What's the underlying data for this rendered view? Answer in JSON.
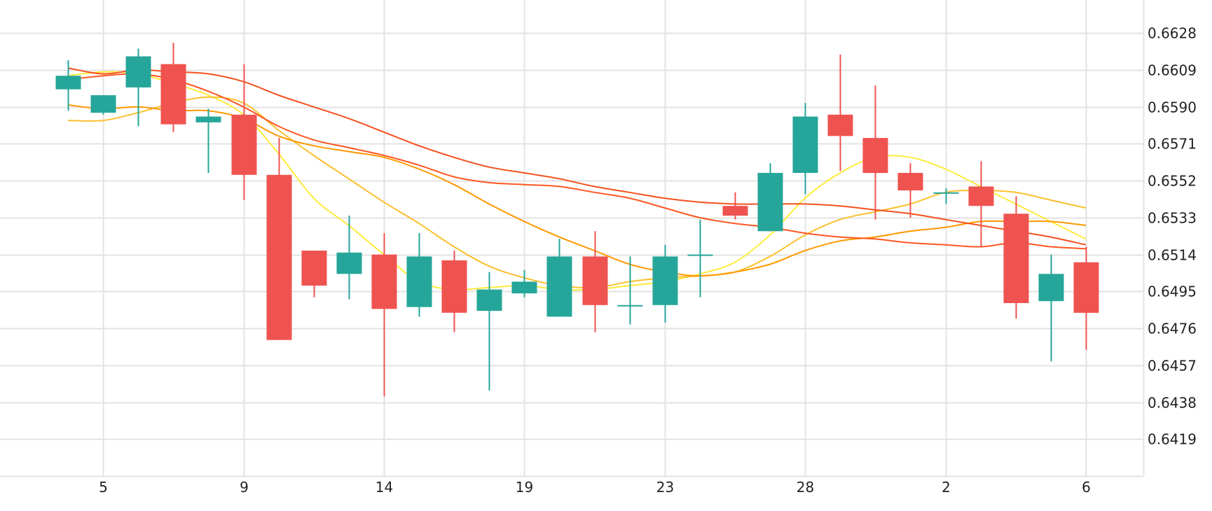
{
  "chart_data": {
    "type": "candlestick",
    "x_tick_labels": [
      "5",
      "9",
      "14",
      "19",
      "23",
      "28",
      "2",
      "6"
    ],
    "y_tick_labels": [
      "0.6628",
      "0.6609",
      "0.6590",
      "0.6571",
      "0.6552",
      "0.6533",
      "0.6514",
      "0.6495",
      "0.6476",
      "0.6457",
      "0.6438",
      "0.6419"
    ],
    "ylim": [
      0.64,
      0.6645
    ],
    "grid": true,
    "colors": {
      "up": "#26a69a",
      "down": "#ef5350",
      "grid": "#e3e3e3",
      "text": "#222222"
    },
    "candles": [
      {
        "o": 0.6599,
        "h": 0.6614,
        "l": 0.6588,
        "c": 0.6606
      },
      {
        "o": 0.6587,
        "h": 0.6596,
        "l": 0.6586,
        "c": 0.6596
      },
      {
        "o": 0.66,
        "h": 0.662,
        "l": 0.658,
        "c": 0.6616
      },
      {
        "o": 0.6612,
        "h": 0.6623,
        "l": 0.6577,
        "c": 0.6581
      },
      {
        "o": 0.6582,
        "h": 0.6589,
        "l": 0.6556,
        "c": 0.6585
      },
      {
        "o": 0.6586,
        "h": 0.6612,
        "l": 0.6542,
        "c": 0.6555
      },
      {
        "o": 0.6555,
        "h": 0.6574,
        "l": 0.647,
        "c": 0.647
      },
      {
        "o": 0.6516,
        "h": 0.6516,
        "l": 0.6492,
        "c": 0.6498
      },
      {
        "o": 0.6504,
        "h": 0.6534,
        "l": 0.6491,
        "c": 0.6515
      },
      {
        "o": 0.6514,
        "h": 0.6525,
        "l": 0.6441,
        "c": 0.6486
      },
      {
        "o": 0.6487,
        "h": 0.6525,
        "l": 0.6482,
        "c": 0.6513
      },
      {
        "o": 0.6511,
        "h": 0.6516,
        "l": 0.6474,
        "c": 0.6484
      },
      {
        "o": 0.6485,
        "h": 0.6505,
        "l": 0.6444,
        "c": 0.6496
      },
      {
        "o": 0.6494,
        "h": 0.6506,
        "l": 0.6492,
        "c": 0.65
      },
      {
        "o": 0.6482,
        "h": 0.6522,
        "l": 0.6482,
        "c": 0.6513
      },
      {
        "o": 0.6513,
        "h": 0.6526,
        "l": 0.6474,
        "c": 0.6488
      },
      {
        "o": 0.6488,
        "h": 0.6513,
        "l": 0.6478,
        "c": 0.6488
      },
      {
        "o": 0.6488,
        "h": 0.6519,
        "l": 0.6479,
        "c": 0.6513
      },
      {
        "o": 0.6514,
        "h": 0.6532,
        "l": 0.6492,
        "c": 0.6514
      },
      {
        "o": 0.6539,
        "h": 0.6546,
        "l": 0.6532,
        "c": 0.6534
      },
      {
        "o": 0.6526,
        "h": 0.6561,
        "l": 0.6526,
        "c": 0.6556
      },
      {
        "o": 0.6556,
        "h": 0.6592,
        "l": 0.6545,
        "c": 0.6585
      },
      {
        "o": 0.6586,
        "h": 0.6617,
        "l": 0.6557,
        "c": 0.6575
      },
      {
        "o": 0.6574,
        "h": 0.6601,
        "l": 0.6532,
        "c": 0.6556
      },
      {
        "o": 0.6556,
        "h": 0.6561,
        "l": 0.6533,
        "c": 0.6547
      },
      {
        "o": 0.6546,
        "h": 0.6548,
        "l": 0.654,
        "c": 0.6546
      },
      {
        "o": 0.6549,
        "h": 0.6562,
        "l": 0.6518,
        "c": 0.6539
      },
      {
        "o": 0.6535,
        "h": 0.6544,
        "l": 0.6481,
        "c": 0.6489
      },
      {
        "o": 0.649,
        "h": 0.6514,
        "l": 0.6459,
        "c": 0.6504
      },
      {
        "o": 0.651,
        "h": 0.6518,
        "l": 0.6465,
        "c": 0.6484
      }
    ],
    "moving_averages": [
      {
        "color": "#ffeb3b",
        "values": [
          0.6606,
          0.6608,
          0.6607,
          0.6602,
          0.6596,
          0.6586,
          0.6566,
          0.6543,
          0.6529,
          0.6514,
          0.65,
          0.6496,
          0.6497,
          0.6498,
          0.6496,
          0.6496,
          0.6498,
          0.65,
          0.6504,
          0.651,
          0.6524,
          0.6543,
          0.6556,
          0.6564,
          0.6564,
          0.6558,
          0.6549,
          0.654,
          0.6531,
          0.6522
        ]
      },
      {
        "color": "#fbc02d",
        "values": [
          0.6583,
          0.6583,
          0.6587,
          0.6592,
          0.6595,
          0.6592,
          0.6578,
          0.6565,
          0.6553,
          0.6541,
          0.653,
          0.6518,
          0.6508,
          0.6502,
          0.6498,
          0.6497,
          0.65,
          0.6502,
          0.6503,
          0.6505,
          0.6513,
          0.6524,
          0.6532,
          0.6536,
          0.654,
          0.6546,
          0.6547,
          0.6546,
          0.6542,
          0.6538
        ]
      },
      {
        "color": "#ff9800",
        "values": [
          0.6591,
          0.6589,
          0.659,
          0.6588,
          0.6588,
          0.6584,
          0.6575,
          0.657,
          0.6567,
          0.6564,
          0.6558,
          0.655,
          0.654,
          0.6531,
          0.6523,
          0.6516,
          0.6509,
          0.6505,
          0.6503,
          0.6505,
          0.6509,
          0.6516,
          0.6521,
          0.6523,
          0.6526,
          0.6528,
          0.6531,
          0.6531,
          0.6531,
          0.6529
        ]
      },
      {
        "color": "#ff5722",
        "values": [
          0.6604,
          0.6606,
          0.6607,
          0.6604,
          0.6598,
          0.659,
          0.658,
          0.6573,
          0.6569,
          0.6565,
          0.656,
          0.6554,
          0.6551,
          0.655,
          0.6549,
          0.6546,
          0.6543,
          0.6538,
          0.6533,
          0.653,
          0.6528,
          0.6525,
          0.6523,
          0.6522,
          0.652,
          0.6519,
          0.6518,
          0.652,
          0.6518,
          0.6517
        ]
      },
      {
        "color": "#f4511e",
        "values": [
          0.661,
          0.6607,
          0.6609,
          0.6608,
          0.6607,
          0.6603,
          0.6596,
          0.659,
          0.6584,
          0.6577,
          0.657,
          0.6564,
          0.6559,
          0.6556,
          0.6553,
          0.6549,
          0.6546,
          0.6543,
          0.6541,
          0.654,
          0.654,
          0.654,
          0.6539,
          0.6537,
          0.6535,
          0.6532,
          0.6529,
          0.6526,
          0.6523,
          0.6519
        ]
      }
    ]
  }
}
